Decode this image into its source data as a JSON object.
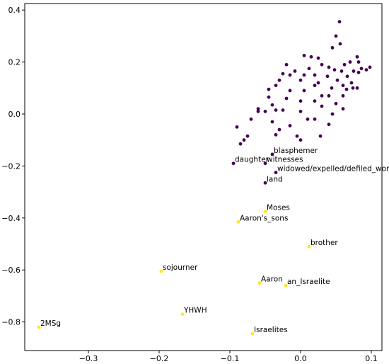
{
  "chart_data": {
    "type": "scatter",
    "title": "",
    "xlabel": "",
    "ylabel": "",
    "xlim": [
      -0.39,
      0.115
    ],
    "ylim": [
      -0.91,
      0.425
    ],
    "x_ticks": [
      -0.3,
      -0.2,
      -0.1,
      0.0,
      0.1
    ],
    "x_tick_labels": [
      "−0.3",
      "−0.2",
      "−0.1",
      "0.0",
      "0.1"
    ],
    "y_ticks": [
      -0.8,
      -0.6,
      -0.4,
      -0.2,
      0.0,
      0.2,
      0.4
    ],
    "y_tick_labels": [
      "−0.8",
      "−0.6",
      "−0.4",
      "−0.2",
      "0.0",
      "0.2",
      "0.4"
    ],
    "grid": false,
    "colors": {
      "cluster": "#440154",
      "highlight": "#fde725"
    },
    "labeled_points": [
      {
        "label": "blasphemer",
        "x": -0.04,
        "y": -0.155,
        "color": "#440154"
      },
      {
        "label": "daughter",
        "x": -0.095,
        "y": -0.19,
        "color": "#440154"
      },
      {
        "label": "witnesses",
        "x": -0.05,
        "y": -0.19,
        "color": "#440154"
      },
      {
        "label": "widowed/expelled/defiled_woman",
        "x": -0.035,
        "y": -0.225,
        "color": "#440154"
      },
      {
        "label": "land",
        "x": -0.05,
        "y": -0.265,
        "color": "#440154"
      },
      {
        "label": "Moses",
        "x": -0.05,
        "y": -0.375,
        "color": "#fde725"
      },
      {
        "label": "Aaron's_sons",
        "x": -0.088,
        "y": -0.415,
        "color": "#fde725"
      },
      {
        "label": "brother",
        "x": 0.012,
        "y": -0.51,
        "color": "#fde725"
      },
      {
        "label": "sojourner",
        "x": -0.197,
        "y": -0.605,
        "color": "#fde725"
      },
      {
        "label": "Aaron",
        "x": -0.058,
        "y": -0.65,
        "color": "#fde725"
      },
      {
        "label": "an_Israelite",
        "x": -0.021,
        "y": -0.66,
        "color": "#fde725"
      },
      {
        "label": "YHWH",
        "x": -0.167,
        "y": -0.77,
        "color": "#fde725"
      },
      {
        "label": "2MSg",
        "x": -0.37,
        "y": -0.82,
        "color": "#fde725"
      },
      {
        "label": "Israelites",
        "x": -0.068,
        "y": -0.845,
        "color": "#fde725"
      }
    ],
    "cluster_points": [
      [
        0.055,
        0.355
      ],
      [
        0.05,
        0.3
      ],
      [
        0.056,
        0.27
      ],
      [
        0.045,
        0.255
      ],
      [
        0.08,
        0.22
      ],
      [
        0.005,
        0.225
      ],
      [
        0.015,
        0.22
      ],
      [
        0.025,
        0.215
      ],
      [
        0.07,
        0.2
      ],
      [
        0.082,
        0.2
      ],
      [
        0.098,
        0.18
      ],
      [
        0.093,
        0.17
      ],
      [
        0.062,
        0.19
      ],
      [
        -0.02,
        0.19
      ],
      [
        0.03,
        0.19
      ],
      [
        0.04,
        0.18
      ],
      [
        0.048,
        0.17
      ],
      [
        0.058,
        0.165
      ],
      [
        0.075,
        0.165
      ],
      [
        0.082,
        0.16
      ],
      [
        0.086,
        0.175
      ],
      [
        0.012,
        0.175
      ],
      [
        -0.008,
        0.165
      ],
      [
        -0.025,
        0.155
      ],
      [
        -0.015,
        0.15
      ],
      [
        0.005,
        0.15
      ],
      [
        0.02,
        0.15
      ],
      [
        0.038,
        0.145
      ],
      [
        0.066,
        0.145
      ],
      [
        -0.03,
        0.13
      ],
      [
        0.0,
        0.13
      ],
      [
        0.025,
        0.12
      ],
      [
        0.052,
        0.13
      ],
      [
        0.072,
        0.12
      ],
      [
        -0.035,
        0.11
      ],
      [
        0.02,
        0.11
      ],
      [
        0.06,
        0.11
      ],
      [
        0.074,
        0.1
      ],
      [
        0.08,
        0.1
      ],
      [
        0.044,
        0.1
      ],
      [
        0.065,
        0.095
      ],
      [
        -0.045,
        0.095
      ],
      [
        -0.015,
        0.09
      ],
      [
        0.005,
        0.09
      ],
      [
        0.03,
        0.07
      ],
      [
        0.04,
        0.07
      ],
      [
        0.06,
        0.07
      ],
      [
        -0.045,
        0.065
      ],
      [
        -0.02,
        0.06
      ],
      [
        0.0,
        0.05
      ],
      [
        0.02,
        0.05
      ],
      [
        0.05,
        0.04
      ],
      [
        -0.04,
        0.035
      ],
      [
        0.03,
        0.03
      ],
      [
        0.06,
        0.02
      ],
      [
        -0.06,
        0.02
      ],
      [
        -0.035,
        0.015
      ],
      [
        -0.025,
        0.015
      ],
      [
        -0.06,
        0.01
      ],
      [
        -0.05,
        0.01
      ],
      [
        0.0,
        0.01
      ],
      [
        0.045,
        0.0
      ],
      [
        -0.07,
        -0.02
      ],
      [
        0.01,
        -0.02
      ],
      [
        0.02,
        -0.02
      ],
      [
        -0.04,
        -0.03
      ],
      [
        -0.015,
        -0.045
      ],
      [
        0.04,
        -0.04
      ],
      [
        -0.09,
        -0.05
      ],
      [
        -0.03,
        -0.06
      ],
      [
        -0.035,
        -0.08
      ],
      [
        -0.005,
        -0.085
      ],
      [
        0.028,
        -0.085
      ],
      [
        -0.075,
        -0.085
      ],
      [
        -0.08,
        -0.1
      ],
      [
        0.0,
        -0.1
      ],
      [
        -0.085,
        -0.115
      ]
    ]
  }
}
